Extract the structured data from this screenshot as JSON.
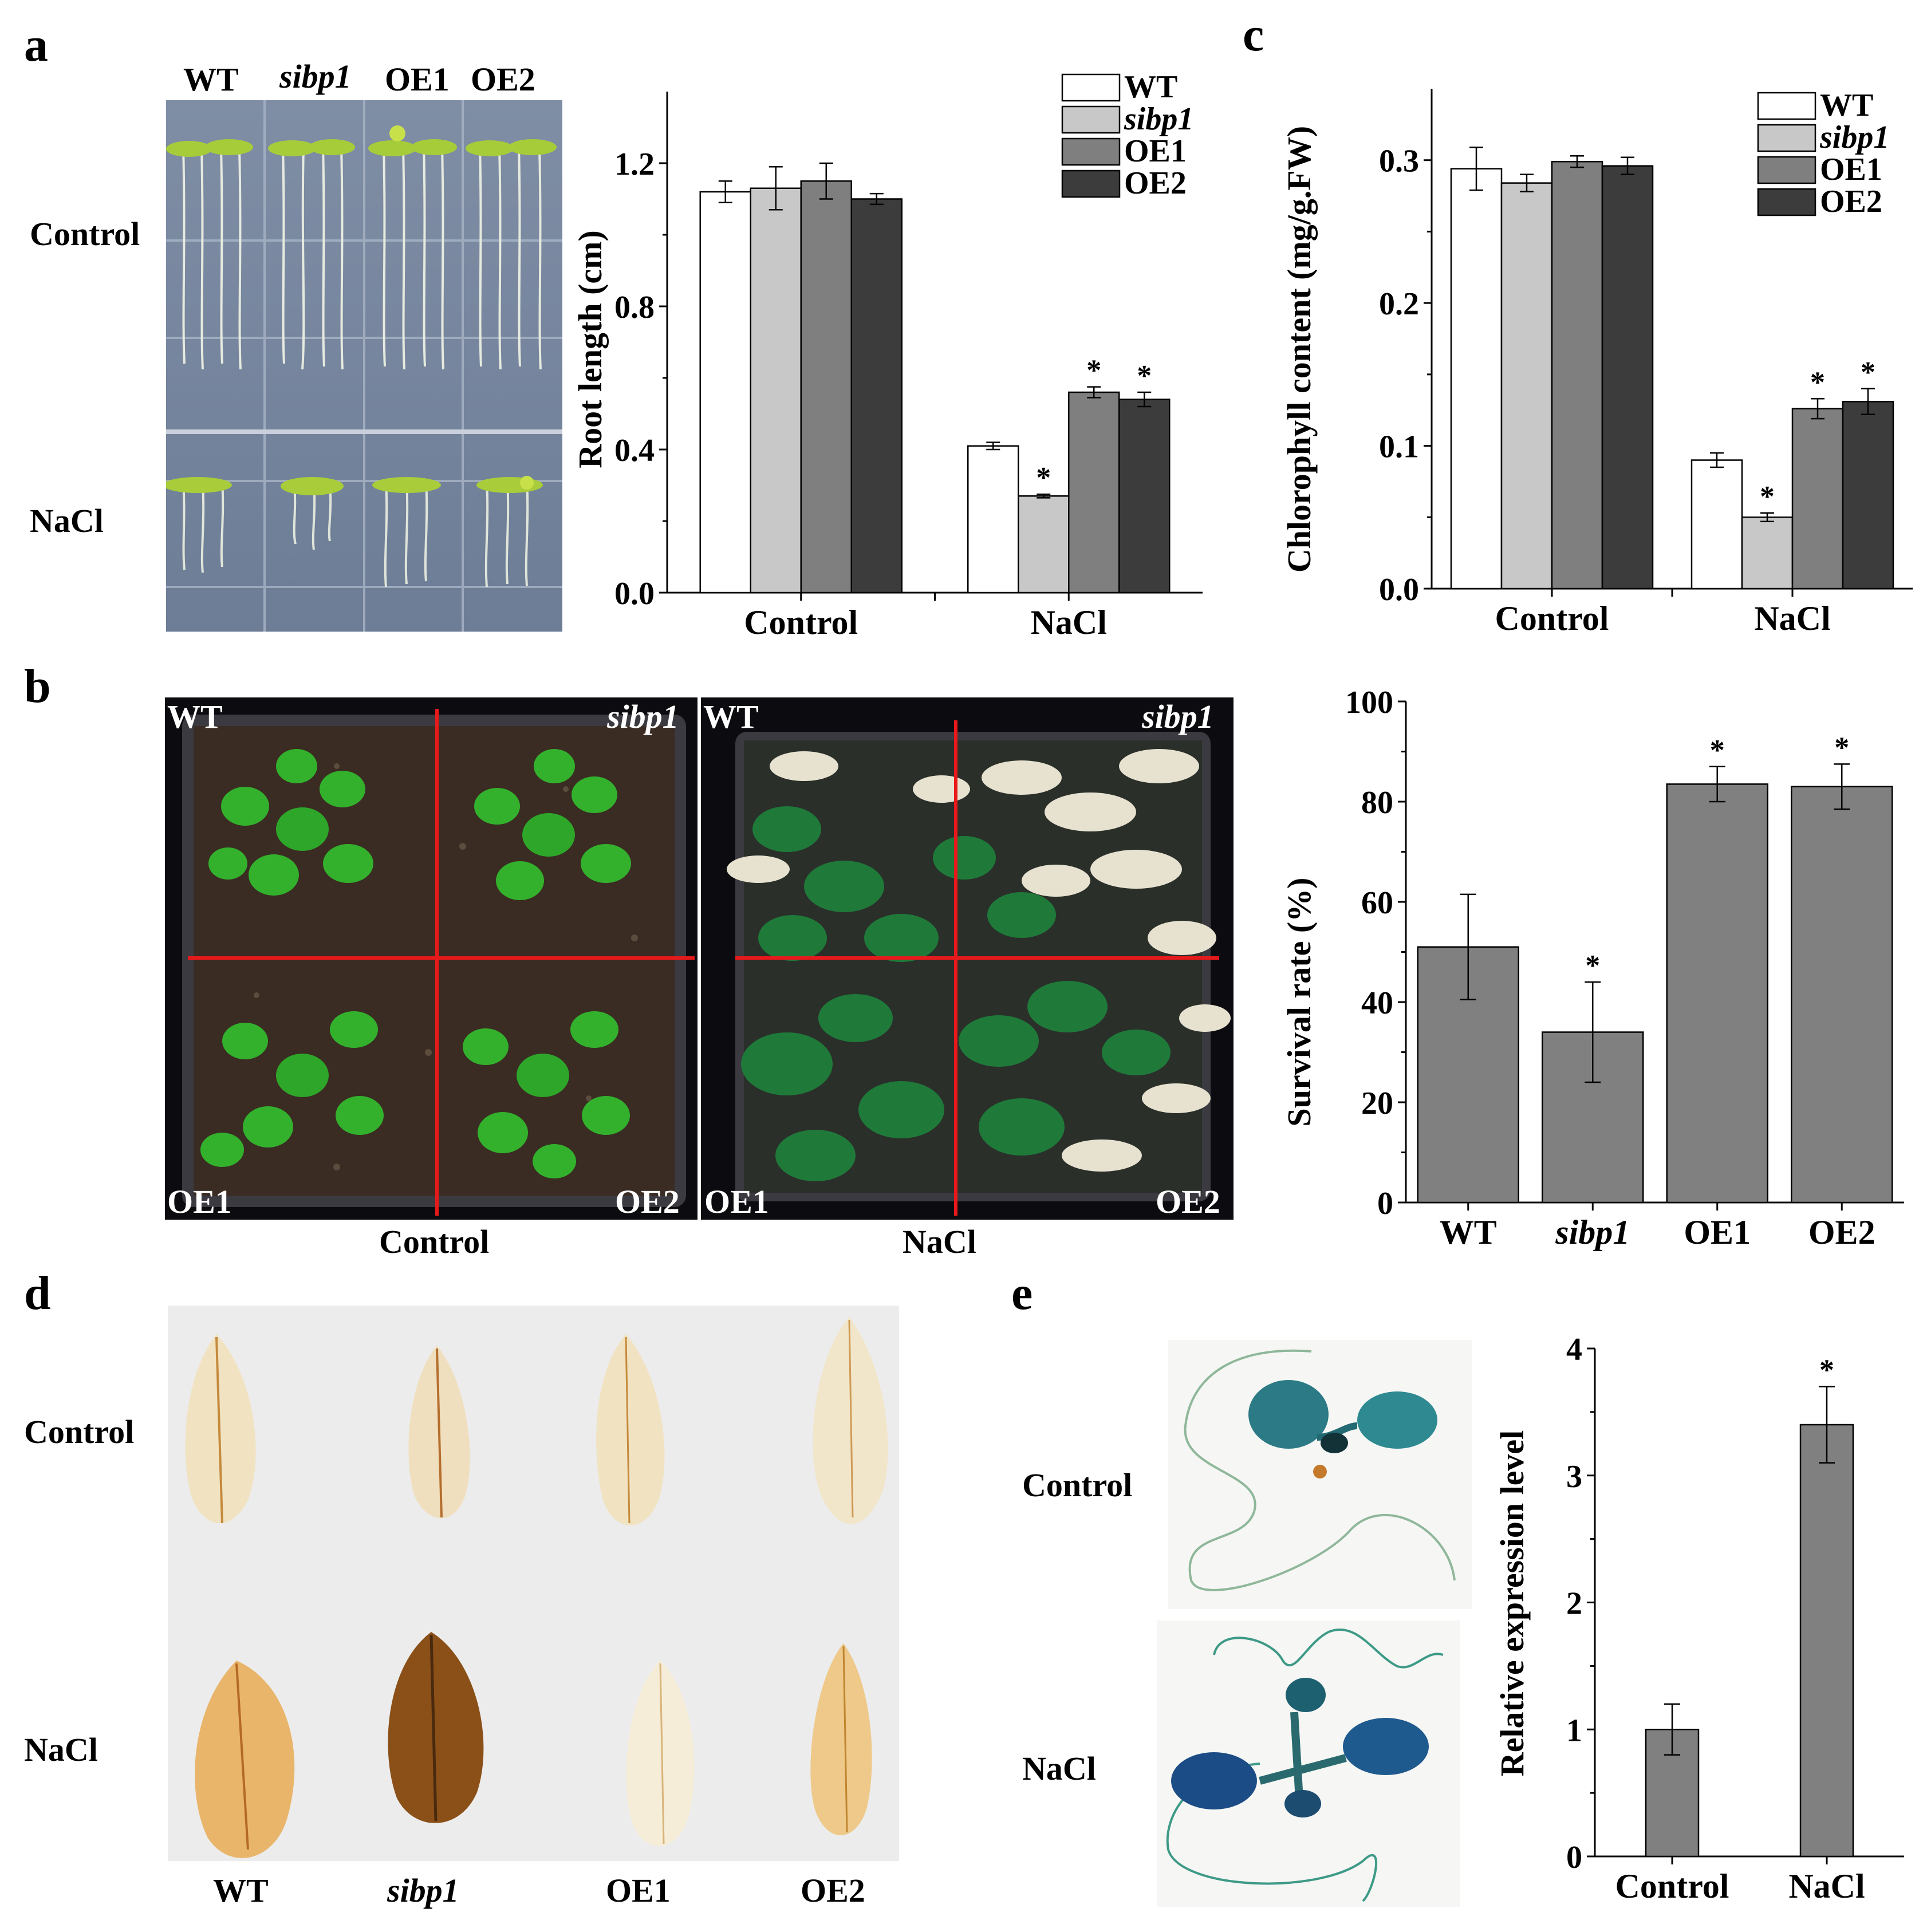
{
  "panels": {
    "a": {
      "letter": "a"
    },
    "b": {
      "letter": "b"
    },
    "c": {
      "letter": "c"
    },
    "d": {
      "letter": "d"
    },
    "e": {
      "letter": "e"
    }
  },
  "photo_a": {
    "genotypes": [
      "WT",
      "sibp1",
      "OE1",
      "OE2"
    ],
    "rows": [
      "Control",
      "NaCl"
    ]
  },
  "photo_b": {
    "control": {
      "tl": "WT",
      "tr": "sibp1",
      "bl": "OE1",
      "br": "OE2",
      "caption": "Control"
    },
    "nacl": {
      "tl": "WT",
      "tr": "sibp1",
      "bl": "OE1",
      "br": "OE2",
      "caption": "NaCl"
    }
  },
  "photo_d": {
    "rows": [
      "Control",
      "NaCl"
    ],
    "columns": [
      "WT",
      "sibp1",
      "OE1",
      "OE2"
    ]
  },
  "photo_e": {
    "rows": [
      "Control",
      "NaCl"
    ]
  },
  "colors": {
    "WT": "#ffffff",
    "sibp1": "#c8c8c8",
    "OE1": "#7f7f7f",
    "OE2": "#3c3c3c",
    "single_bar": "#808080",
    "guide_line": "#e8191b"
  },
  "chart_data": [
    {
      "id": "root-length",
      "type": "bar",
      "categories": [
        "Control",
        "NaCl"
      ],
      "series": [
        {
          "name": "WT",
          "values": [
            1.12,
            0.41
          ],
          "errors": [
            0.03,
            0.01
          ],
          "sig": [
            "",
            ""
          ]
        },
        {
          "name": "sibp1",
          "values": [
            1.13,
            0.27
          ],
          "errors": [
            0.06,
            0.005
          ],
          "sig": [
            "",
            "*"
          ]
        },
        {
          "name": "OE1",
          "values": [
            1.15,
            0.56
          ],
          "errors": [
            0.05,
            0.015
          ],
          "sig": [
            "",
            "*"
          ]
        },
        {
          "name": "OE2",
          "values": [
            1.1,
            0.54
          ],
          "errors": [
            0.015,
            0.02
          ],
          "sig": [
            "",
            "*"
          ]
        }
      ],
      "ylabel": "Root length (cm)",
      "ylim": [
        0,
        1.4
      ],
      "yticks": [
        "0.0",
        "0.4",
        "0.8",
        "1.2"
      ],
      "legend": "top-right"
    },
    {
      "id": "chlorophyll",
      "type": "bar",
      "categories": [
        "Control",
        "NaCl"
      ],
      "series": [
        {
          "name": "WT",
          "values": [
            0.294,
            0.09
          ],
          "errors": [
            0.015,
            0.005
          ],
          "sig": [
            "",
            ""
          ]
        },
        {
          "name": "sibp1",
          "values": [
            0.284,
            0.05
          ],
          "errors": [
            0.006,
            0.003
          ],
          "sig": [
            "",
            "*"
          ]
        },
        {
          "name": "OE1",
          "values": [
            0.299,
            0.126
          ],
          "errors": [
            0.004,
            0.007
          ],
          "sig": [
            "",
            "*"
          ]
        },
        {
          "name": "OE2",
          "values": [
            0.296,
            0.131
          ],
          "errors": [
            0.006,
            0.009
          ],
          "sig": [
            "",
            "*"
          ]
        }
      ],
      "ylabel": "Chlorophyll content (mg/g.FW)",
      "ylim": [
        0,
        0.35
      ],
      "yticks": [
        "0.0",
        "0.1",
        "0.2",
        "0.3"
      ],
      "legend": "top-right"
    },
    {
      "id": "survival",
      "type": "bar",
      "categories": [
        "WT",
        "sibp1",
        "OE1",
        "OE2"
      ],
      "values": [
        51,
        34,
        83.5,
        83
      ],
      "errors": [
        10.5,
        10,
        3.5,
        4.5
      ],
      "sig": [
        "",
        "*",
        "*",
        "*"
      ],
      "ylabel": "Survival rate (%)",
      "ylim": [
        0,
        100
      ],
      "yticks": [
        "0",
        "20",
        "40",
        "60",
        "80",
        "100"
      ]
    },
    {
      "id": "expression",
      "type": "bar",
      "categories": [
        "Control",
        "NaCl"
      ],
      "values": [
        1.0,
        3.4
      ],
      "errors": [
        0.2,
        0.3
      ],
      "sig": [
        "",
        "*"
      ],
      "ylabel": "Relative expression level",
      "ylim": [
        0,
        4
      ],
      "yticks": [
        "0",
        "1",
        "2",
        "3",
        "4"
      ]
    }
  ]
}
